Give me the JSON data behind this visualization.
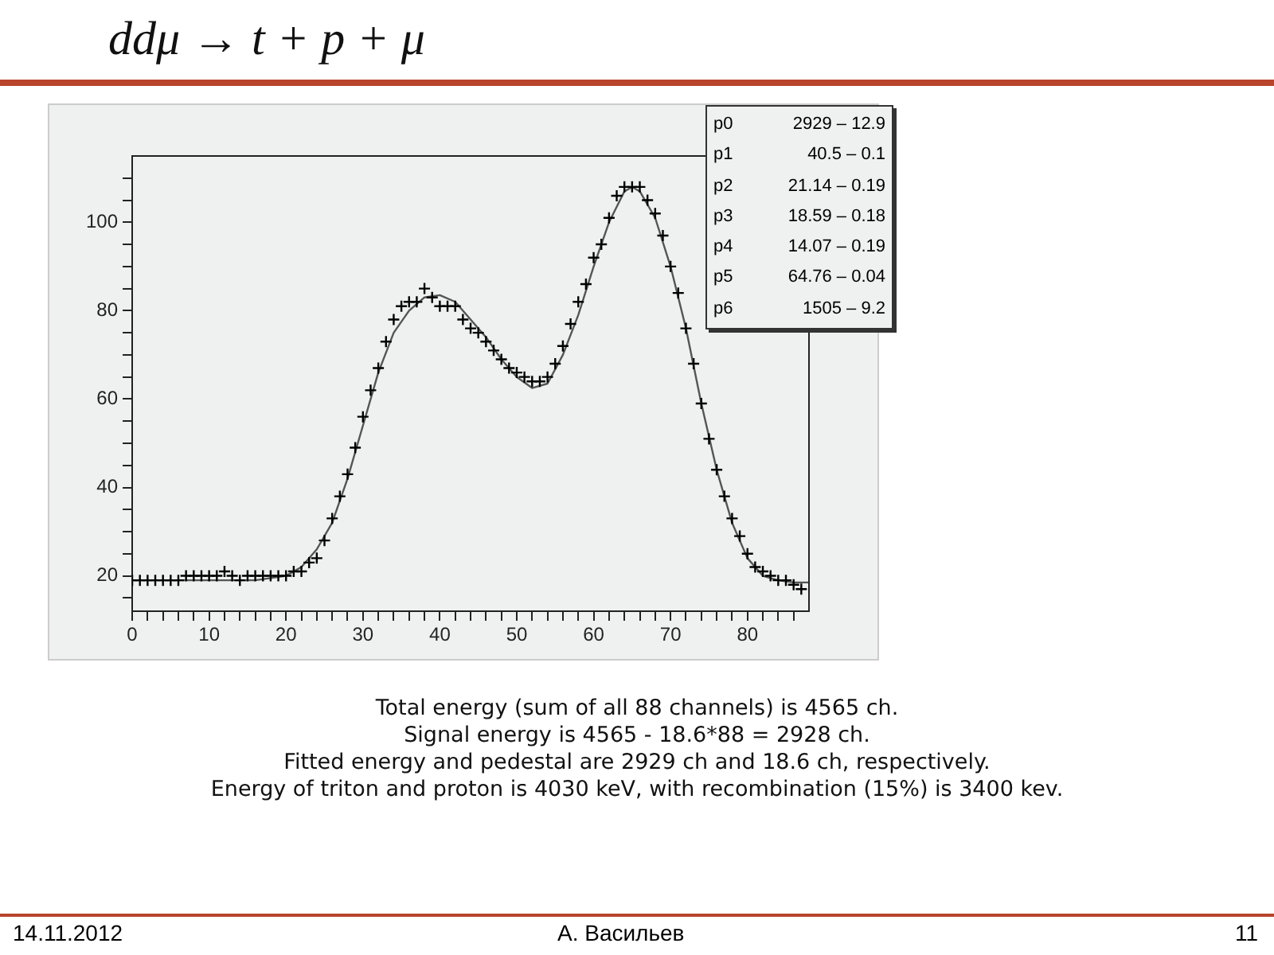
{
  "chart_data": {
    "type": "scatter",
    "title": "ddμ → t + p + μ",
    "xlim": [
      0,
      88
    ],
    "ylim": [
      12,
      115
    ],
    "xticks": [
      0,
      {
        "value": 2,
        "label": null
      },
      {
        "value": 4,
        "label": null
      },
      {
        "value": 6,
        "label": null
      },
      {
        "value": 8,
        "label": null
      },
      10,
      {
        "value": 12,
        "label": null
      },
      {
        "value": 14,
        "label": null
      },
      {
        "value": 16,
        "label": null
      },
      {
        "value": 18,
        "label": null
      },
      20,
      {
        "value": 22,
        "label": null
      },
      {
        "value": 24,
        "label": null
      },
      {
        "value": 26,
        "label": null
      },
      {
        "value": 28,
        "label": null
      },
      30,
      {
        "value": 32,
        "label": null
      },
      {
        "value": 34,
        "label": null
      },
      {
        "value": 36,
        "label": null
      },
      {
        "value": 38,
        "label": null
      },
      40,
      {
        "value": 42,
        "label": null
      },
      {
        "value": 44,
        "label": null
      },
      {
        "value": 46,
        "label": null
      },
      {
        "value": 48,
        "label": null
      },
      50,
      {
        "value": 52,
        "label": null
      },
      {
        "value": 54,
        "label": null
      },
      {
        "value": 56,
        "label": null
      },
      {
        "value": 58,
        "label": null
      },
      60,
      {
        "value": 62,
        "label": null
      },
      {
        "value": 64,
        "label": null
      },
      {
        "value": 66,
        "label": null
      },
      {
        "value": 68,
        "label": null
      },
      70,
      {
        "value": 72,
        "label": null
      },
      {
        "value": 74,
        "label": null
      },
      {
        "value": 76,
        "label": null
      },
      {
        "value": 78,
        "label": null
      },
      80,
      {
        "value": 82,
        "label": null
      },
      {
        "value": 84,
        "label": null
      },
      {
        "value": 86,
        "label": null
      }
    ],
    "yticks": [
      {
        "value": 15,
        "label": null
      },
      20,
      {
        "value": 25,
        "label": null
      },
      {
        "value": 30,
        "label": null
      },
      {
        "value": 35,
        "label": null
      },
      40,
      {
        "value": 45,
        "label": null
      },
      {
        "value": 50,
        "label": null
      },
      {
        "value": 55,
        "label": null
      },
      60,
      {
        "value": 65,
        "label": null
      },
      {
        "value": 70,
        "label": null
      },
      {
        "value": 75,
        "label": null
      },
      80,
      {
        "value": 85,
        "label": null
      },
      {
        "value": 90,
        "label": null
      },
      {
        "value": 95,
        "label": null
      },
      100,
      {
        "value": 105,
        "label": null
      },
      {
        "value": 110,
        "label": null
      }
    ],
    "grid": false,
    "legend": false,
    "series": [
      {
        "type": "scatter",
        "color": "#000000",
        "marker": "cross",
        "x": [
          0,
          1,
          2,
          3,
          4,
          5,
          6,
          7,
          8,
          9,
          10,
          11,
          12,
          13,
          14,
          15,
          16,
          17,
          18,
          19,
          20,
          21,
          22,
          23,
          24,
          25,
          26,
          27,
          28,
          29,
          30,
          31,
          32,
          33,
          34,
          35,
          36,
          37,
          38,
          39,
          40,
          41,
          42,
          43,
          44,
          45,
          46,
          47,
          48,
          49,
          50,
          51,
          52,
          53,
          54,
          55,
          56,
          57,
          58,
          59,
          60,
          61,
          62,
          63,
          64,
          65,
          66,
          67,
          68,
          69,
          70,
          71,
          72,
          73,
          74,
          75,
          76,
          77,
          78,
          79,
          80,
          81,
          82,
          83,
          84,
          85,
          86,
          87
        ],
        "values": [
          19,
          19,
          19,
          19,
          19,
          19,
          19,
          20,
          20,
          20,
          20,
          20,
          21,
          20,
          19,
          20,
          20,
          20,
          20,
          20,
          20,
          21,
          21,
          23,
          24,
          28,
          33,
          38,
          43,
          49,
          56,
          62,
          67,
          73,
          78,
          81,
          82,
          82,
          85,
          83,
          81,
          81,
          81,
          78,
          76,
          75,
          73,
          71,
          69,
          67,
          66,
          65,
          64,
          64,
          65,
          68,
          72,
          77,
          82,
          86,
          92,
          95,
          101,
          106,
          108,
          108,
          108,
          105,
          102,
          97,
          90,
          84,
          76,
          68,
          59,
          51,
          44,
          38,
          33,
          29,
          25,
          22,
          21,
          20,
          19,
          19,
          18,
          17
        ]
      },
      {
        "type": "line",
        "color": "#555555",
        "marker": "none",
        "x": [
          0,
          4,
          8,
          12,
          16,
          18,
          20,
          22,
          24,
          26,
          28,
          30,
          32,
          34,
          36,
          38,
          40,
          42,
          44,
          46,
          48,
          50,
          52,
          54,
          56,
          58,
          60,
          62,
          64,
          65,
          66,
          68,
          70,
          72,
          74,
          76,
          78,
          80,
          82,
          84,
          86,
          88
        ],
        "values": [
          19,
          19,
          19,
          19,
          19,
          19.5,
          20,
          22,
          26,
          32,
          42,
          54,
          66,
          75,
          80,
          83,
          83.5,
          82,
          78,
          74,
          69,
          65,
          62.5,
          63.5,
          70,
          79,
          90,
          100,
          107,
          108,
          107,
          101,
          90,
          76,
          59,
          44,
          32,
          24,
          20,
          19,
          18.5,
          18.5
        ]
      }
    ],
    "annotations": [
      "p0 2929 – 12.9",
      "p1 40.5 – 0.1",
      "p2 21.14 – 0.19",
      "p3 18.59 – 0.18",
      "p4 14.07 – 0.19",
      "p5 64.76 – 0.04",
      "p6 1505 – 9.2",
      "Total energy (sum of all 88 channels) is 4565 ch.",
      "Signal energy is 4565 - 18.6*88 = 2928 ch.",
      "Fitted energy and pedestal are 2929 ch and 18.6 ch, respectively.",
      "Energy of triton and proton is 4030 keV, with recombination (15%) is 3400 kev.",
      "14.11.2012",
      "А. Васильев",
      "11"
    ]
  }
}
